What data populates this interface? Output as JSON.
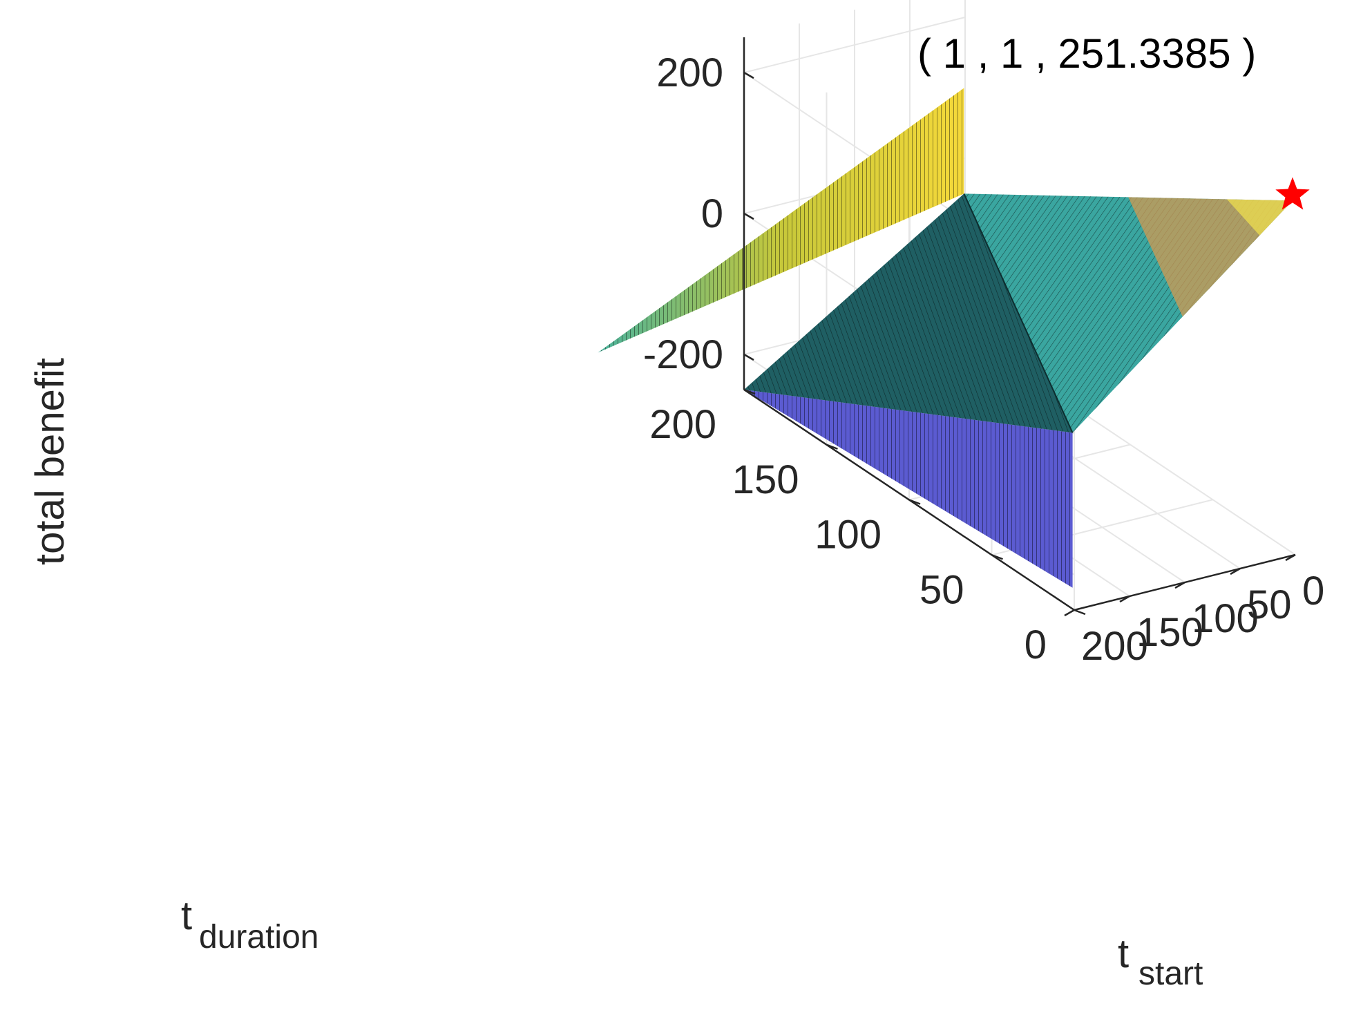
{
  "chart_data": {
    "type": "surface",
    "view": "3d",
    "xlabel": {
      "main": "t",
      "sub": "start"
    },
    "ylabel": {
      "main": "t",
      "sub": "duration"
    },
    "zlabel": "total benefit",
    "xlim": [
      0,
      200
    ],
    "ylim": [
      0,
      200
    ],
    "zlim": [
      -250,
      250
    ],
    "xticks": [
      0,
      50,
      100,
      150,
      200
    ],
    "yticks": [
      0,
      50,
      100,
      150,
      200
    ],
    "zticks": [
      -200,
      0,
      200
    ],
    "xtick_labels": [
      "0",
      "50",
      "100",
      "150",
      "200"
    ],
    "ytick_labels": [
      "0",
      "50",
      "100",
      "150",
      "200"
    ],
    "ztick_labels": [
      "-200",
      "0",
      "200"
    ],
    "grid": true,
    "colormap": "parula",
    "surface_corners": [
      {
        "t_start": 1,
        "t_duration": 1,
        "total_benefit": 251.3385
      },
      {
        "t_start": 1,
        "t_duration": 200,
        "total_benefit": -50
      },
      {
        "t_start": 200,
        "t_duration": 1,
        "total_benefit": 0
      },
      {
        "t_start": 200,
        "t_duration": 200,
        "total_benefit": -250
      }
    ],
    "edge_walls": [
      {
        "t_start": 1,
        "t_duration": 200,
        "z_from": -50,
        "z_to": 100
      },
      {
        "t_start": 200,
        "t_duration": 1,
        "z_from": -220,
        "z_to": 0
      }
    ],
    "marker": {
      "symbol": "star",
      "color": "#ff0000",
      "t_start": 1,
      "t_duration": 1,
      "total_benefit": 251.3385,
      "label": "( 1 , 1 , 251.3385 )"
    }
  }
}
